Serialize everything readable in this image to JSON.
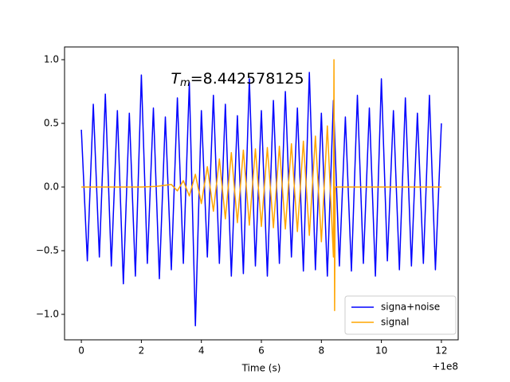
{
  "chart_data": {
    "type": "line",
    "annotation": {
      "main": "T",
      "sub": "m",
      "rest": "=8.442578125"
    },
    "xlabel": "Time (s)",
    "x_offset_label": "+1e8",
    "xlim": [
      -0.56,
      12.56
    ],
    "ylim": [
      -1.2,
      1.1
    ],
    "xticks": [
      0,
      2,
      4,
      6,
      8,
      10,
      12
    ],
    "yticks": [
      {
        "value": -1,
        "label": "−1.0"
      },
      {
        "value": -0.5,
        "label": "−0.5"
      },
      {
        "value": 0,
        "label": "0.0"
      },
      {
        "value": 0.5,
        "label": "0.5"
      },
      {
        "value": 1,
        "label": "1.0"
      }
    ],
    "grid": false,
    "legend": "lower right",
    "series": [
      {
        "name": "signa+noise",
        "color": "#0000ff",
        "x": [
          0,
          0.2,
          0.4,
          0.6,
          0.8,
          1,
          1.2,
          1.4,
          1.6,
          1.8,
          2,
          2.2,
          2.4,
          2.6,
          2.8,
          3,
          3.2,
          3.4,
          3.6,
          3.8,
          4,
          4.2,
          4.4,
          4.6,
          4.8,
          5,
          5.2,
          5.4,
          5.6,
          5.8,
          6,
          6.2,
          6.4,
          6.6,
          6.8,
          7,
          7.2,
          7.4,
          7.6,
          7.8,
          8,
          8.2,
          8.4,
          8.6,
          8.8,
          9,
          9.2,
          9.4,
          9.6,
          9.8,
          10,
          10.2,
          10.4,
          10.6,
          10.8,
          11,
          11.2,
          11.4,
          11.6,
          11.8,
          12
        ],
        "values": [
          0.45,
          -0.58,
          0.65,
          -0.55,
          0.73,
          -0.62,
          0.6,
          -0.76,
          0.58,
          -0.7,
          0.88,
          -0.6,
          0.62,
          -0.72,
          0.55,
          -0.65,
          0.7,
          -0.6,
          0.82,
          -1.09,
          0.6,
          -0.55,
          0.72,
          -0.6,
          0.65,
          -0.7,
          0.56,
          -0.68,
          0.85,
          -0.62,
          0.6,
          -0.7,
          0.68,
          -0.6,
          0.75,
          -0.55,
          0.62,
          -0.66,
          0.9,
          -0.65,
          0.58,
          -0.7,
          0.68,
          -0.62,
          0.55,
          -0.66,
          0.72,
          -0.6,
          0.62,
          -0.7,
          0.85,
          -0.58,
          0.6,
          -0.65,
          0.7,
          -0.62,
          0.58,
          -0.6,
          0.72,
          -0.65,
          0.5
        ]
      },
      {
        "name": "signal",
        "color": "#ffa500",
        "x": [
          0,
          1,
          2,
          2.5,
          3,
          3.2,
          3.4,
          3.6,
          3.8,
          4,
          4.2,
          4.4,
          4.6,
          4.8,
          5,
          5.2,
          5.4,
          5.6,
          5.8,
          6,
          6.2,
          6.4,
          6.6,
          6.8,
          7,
          7.2,
          7.4,
          7.6,
          7.8,
          8,
          8.2,
          8.4,
          8.42,
          8.44,
          8.46,
          12
        ],
        "values": [
          0,
          0,
          0,
          0.005,
          0.02,
          -0.03,
          0.05,
          -0.07,
          0.1,
          -0.13,
          0.16,
          -0.19,
          0.22,
          -0.25,
          0.27,
          -0.28,
          0.29,
          -0.3,
          0.3,
          -0.31,
          0.31,
          -0.32,
          0.32,
          -0.33,
          0.34,
          -0.35,
          0.36,
          -0.38,
          0.4,
          -0.43,
          0.48,
          -0.55,
          1.0,
          -0.97,
          0,
          0
        ]
      }
    ]
  }
}
